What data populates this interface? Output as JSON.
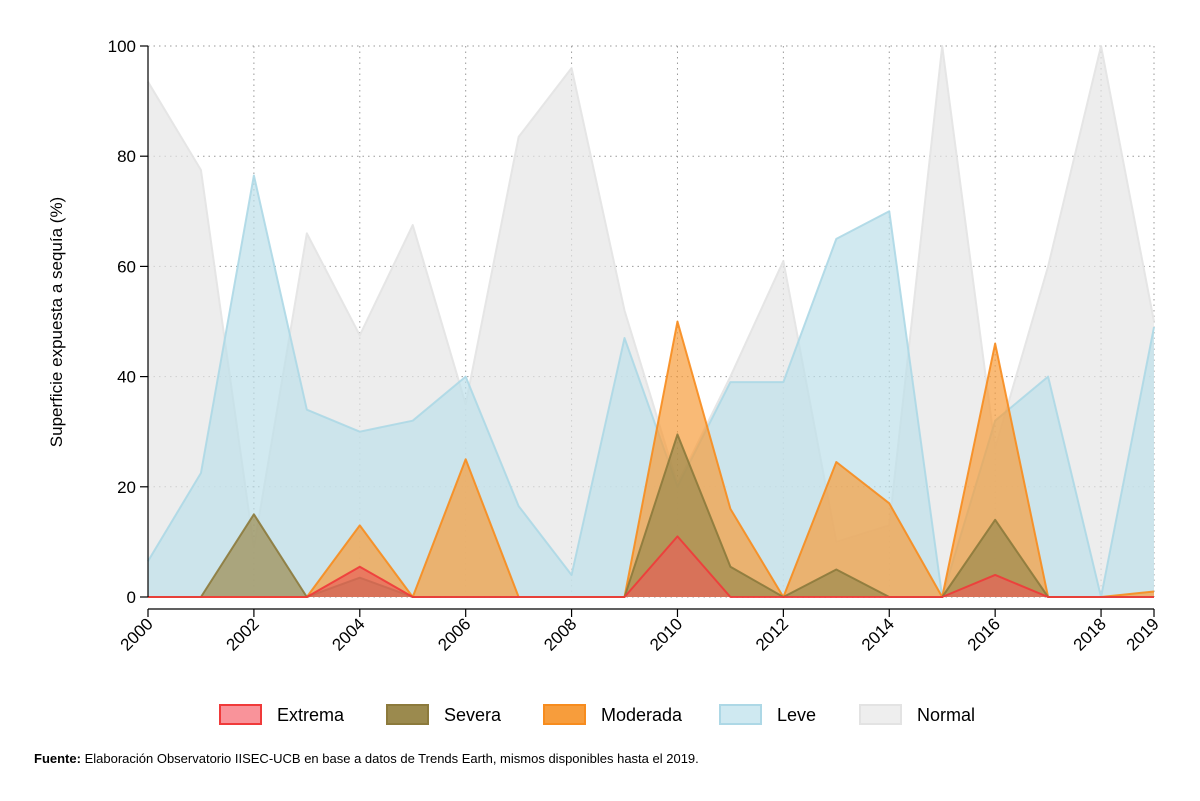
{
  "chart_data": {
    "type": "area",
    "ylabel": "Superficie expuesta a sequía (%)",
    "xlabel": "",
    "ylim": [
      0,
      100
    ],
    "yticks": [
      0,
      20,
      40,
      60,
      80,
      100
    ],
    "xticks": [
      2000,
      2002,
      2004,
      2006,
      2008,
      2010,
      2012,
      2014,
      2016,
      2018,
      2019
    ],
    "grid": true,
    "legend_position": "bottom",
    "x": [
      2000,
      2001,
      2002,
      2003,
      2004,
      2005,
      2006,
      2007,
      2008,
      2009,
      2010,
      2011,
      2012,
      2013,
      2014,
      2015,
      2016,
      2017,
      2018,
      2019
    ],
    "series": [
      {
        "name": "Normal",
        "fill": "#e6e6e6",
        "stroke": "#e3e3e3",
        "values": [
          93.5,
          77.5,
          9,
          66,
          47.5,
          67.5,
          35,
          83.5,
          96,
          52,
          20.5,
          40,
          61,
          10,
          13,
          100,
          27,
          60,
          100,
          50
        ]
      },
      {
        "name": "Leve",
        "fill": "#bde0ea",
        "stroke": "#add8e6",
        "values": [
          6.5,
          22.5,
          76.5,
          34,
          30,
          32,
          40,
          16.5,
          4,
          47,
          20,
          39,
          39,
          65,
          70,
          0,
          32,
          40,
          0,
          49
        ]
      },
      {
        "name": "Moderada",
        "fill": "#f79d3c",
        "stroke": "#f78c1e",
        "values": [
          0,
          0,
          0,
          0,
          13,
          0,
          25,
          0,
          0,
          0,
          50,
          16,
          0,
          24.5,
          17,
          0,
          46,
          0,
          0,
          1
        ]
      },
      {
        "name": "Severa",
        "fill": "#9b8a4e",
        "stroke": "#8c7a3c",
        "values": [
          0,
          0,
          15,
          0,
          3.5,
          0,
          0,
          0,
          0,
          0,
          29.5,
          5.5,
          0,
          5,
          0,
          0,
          14,
          0,
          0,
          0
        ]
      },
      {
        "name": "Extrema",
        "fill": "#e8635a",
        "stroke": "#f03a3a",
        "values": [
          0,
          0,
          0,
          0,
          5.5,
          0,
          0,
          0,
          0,
          0,
          11,
          0,
          0,
          0,
          0,
          0,
          4,
          0,
          0,
          0
        ]
      }
    ],
    "legend": [
      {
        "name": "Extrema",
        "fill": "#f9939a",
        "stroke": "#f03a3a"
      },
      {
        "name": "Severa",
        "fill": "#9b8a4e",
        "stroke": "#8c7a3c"
      },
      {
        "name": "Moderada",
        "fill": "#f79d3c",
        "stroke": "#f78c1e"
      },
      {
        "name": "Leve",
        "fill": "#cfe9f1",
        "stroke": "#add8e6"
      },
      {
        "name": "Normal",
        "fill": "#eeeeee",
        "stroke": "#e3e3e3"
      }
    ]
  },
  "source": {
    "label": "Fuente:",
    "text": " Elaboración Observatorio IISEC-UCB en base a datos de Trends Earth, mismos disponibles hasta el 2019."
  }
}
